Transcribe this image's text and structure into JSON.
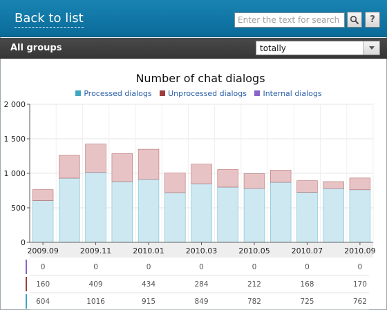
{
  "header": {
    "back_label": "Back to list",
    "search_placeholder": "Enter the text for search",
    "search_icon": "search-icon",
    "help_label": "?"
  },
  "groups": {
    "label": "All groups",
    "period_value": "totally"
  },
  "chart_data": {
    "type": "bar",
    "title": "Number of chat dialogs",
    "stacked": true,
    "legend_position": "top",
    "grid": true,
    "categories": [
      "2009.09",
      "2009.10",
      "2009.11",
      "2009.12",
      "2010.01",
      "2010.02",
      "2010.03",
      "2010.04",
      "2010.05",
      "2010.06",
      "2010.07",
      "2010.08",
      "2010.09"
    ],
    "x_tick_labels": [
      "2009.09",
      "2009.11",
      "2010.01",
      "2010.03",
      "2010.05",
      "2010.07",
      "2010.09"
    ],
    "y_ticks": [
      "0",
      "500",
      "1 000",
      "1 500",
      "2 000"
    ],
    "ylim": [
      0,
      2000
    ],
    "series": [
      {
        "name": "Processed dialogs",
        "color": "#3fa7c2",
        "fill": "#cde8f1",
        "values": [
          604,
          930,
          1016,
          880,
          915,
          720,
          849,
          800,
          782,
          870,
          725,
          780,
          762
        ]
      },
      {
        "name": "Unprocessed dialogs",
        "color": "#9e3d3d",
        "fill": "#e8c3c5",
        "values": [
          160,
          330,
          409,
          405,
          434,
          285,
          284,
          255,
          212,
          175,
          168,
          100,
          170
        ]
      },
      {
        "name": "Internal dialogs",
        "color": "#8a62c8",
        "fill": "#d6c7ee",
        "values": [
          0,
          0,
          0,
          0,
          0,
          0,
          0,
          0,
          0,
          0,
          0,
          0,
          0
        ]
      }
    ],
    "data_table": {
      "rows": [
        {
          "series": "Internal dialogs",
          "color": "#8a62c8",
          "cells": [
            "0",
            "0",
            "0",
            "0",
            "0",
            "0",
            "0"
          ]
        },
        {
          "series": "Unprocessed dialogs",
          "color": "#9e3d3d",
          "cells": [
            "160",
            "409",
            "434",
            "284",
            "212",
            "168",
            "170"
          ]
        },
        {
          "series": "Processed dialogs",
          "color": "#3fa7c2",
          "cells": [
            "604",
            "1016",
            "915",
            "849",
            "782",
            "725",
            "762"
          ]
        }
      ]
    }
  }
}
